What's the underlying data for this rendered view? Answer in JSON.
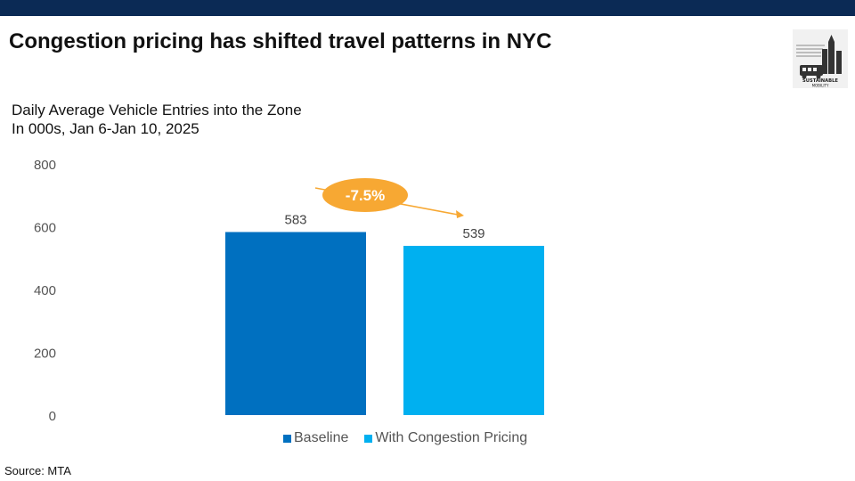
{
  "slide": {
    "title": "Congestion pricing has shifted travel patterns in NYC",
    "subtitle_line1": "Daily Average Vehicle Entries into the Zone",
    "subtitle_line2": "In 000s, Jan 6-Jan 10, 2025",
    "source": "Source: MTA",
    "logo_text_line1": "SUSTAINABLE",
    "logo_text_line2": "MOBILITY",
    "top_bar_color": "#0b2a55"
  },
  "chart_data": {
    "type": "bar",
    "categories": [
      "Baseline",
      "With Congestion Pricing"
    ],
    "values": [
      583,
      539
    ],
    "data_labels": [
      "583",
      "539"
    ],
    "colors": [
      "#0070c0",
      "#00b0f0"
    ],
    "ylim": [
      0,
      800
    ],
    "yticks": [
      0,
      200,
      400,
      600,
      800
    ],
    "grid": false,
    "legend": {
      "placement": "bottom",
      "entries": [
        "Baseline",
        "With Congestion Pricing"
      ]
    },
    "annotation": {
      "text": "-7.5%",
      "color": "#f7a833"
    }
  }
}
